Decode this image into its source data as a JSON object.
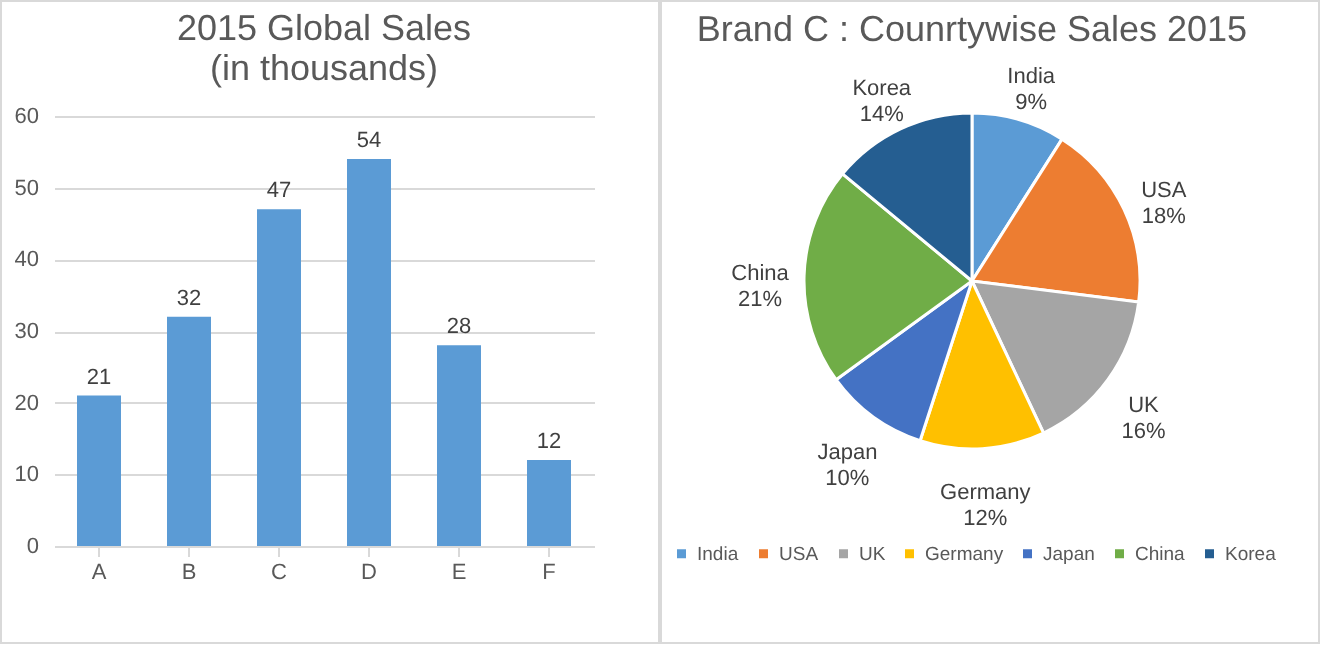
{
  "chart_data": [
    {
      "type": "bar",
      "title": "2015 Global Sales (in thousands)",
      "categories": [
        "A",
        "B",
        "C",
        "D",
        "E",
        "F"
      ],
      "values": [
        21,
        32,
        47,
        54,
        28,
        12
      ],
      "color": "#5b9bd5",
      "ylim": [
        0,
        60
      ],
      "yticks": [
        0,
        10,
        20,
        30,
        40,
        50,
        60
      ],
      "grid": "y",
      "data_labels": true
    },
    {
      "type": "pie",
      "title": "Brand C : Counrtywise Sales 2015",
      "categories": [
        "India",
        "USA",
        "UK",
        "Germany",
        "Japan",
        "China",
        "Korea"
      ],
      "values": [
        9,
        18,
        16,
        12,
        10,
        21,
        14
      ],
      "colors": [
        "#5b9bd5",
        "#ed7d31",
        "#a5a5a5",
        "#ffc000",
        "#4472c4",
        "#70ad47",
        "#255e91"
      ],
      "value_labels": [
        "9%",
        "18%",
        "16%",
        "12%",
        "10%",
        "21%",
        "14%"
      ],
      "legend": "bottom"
    }
  ]
}
